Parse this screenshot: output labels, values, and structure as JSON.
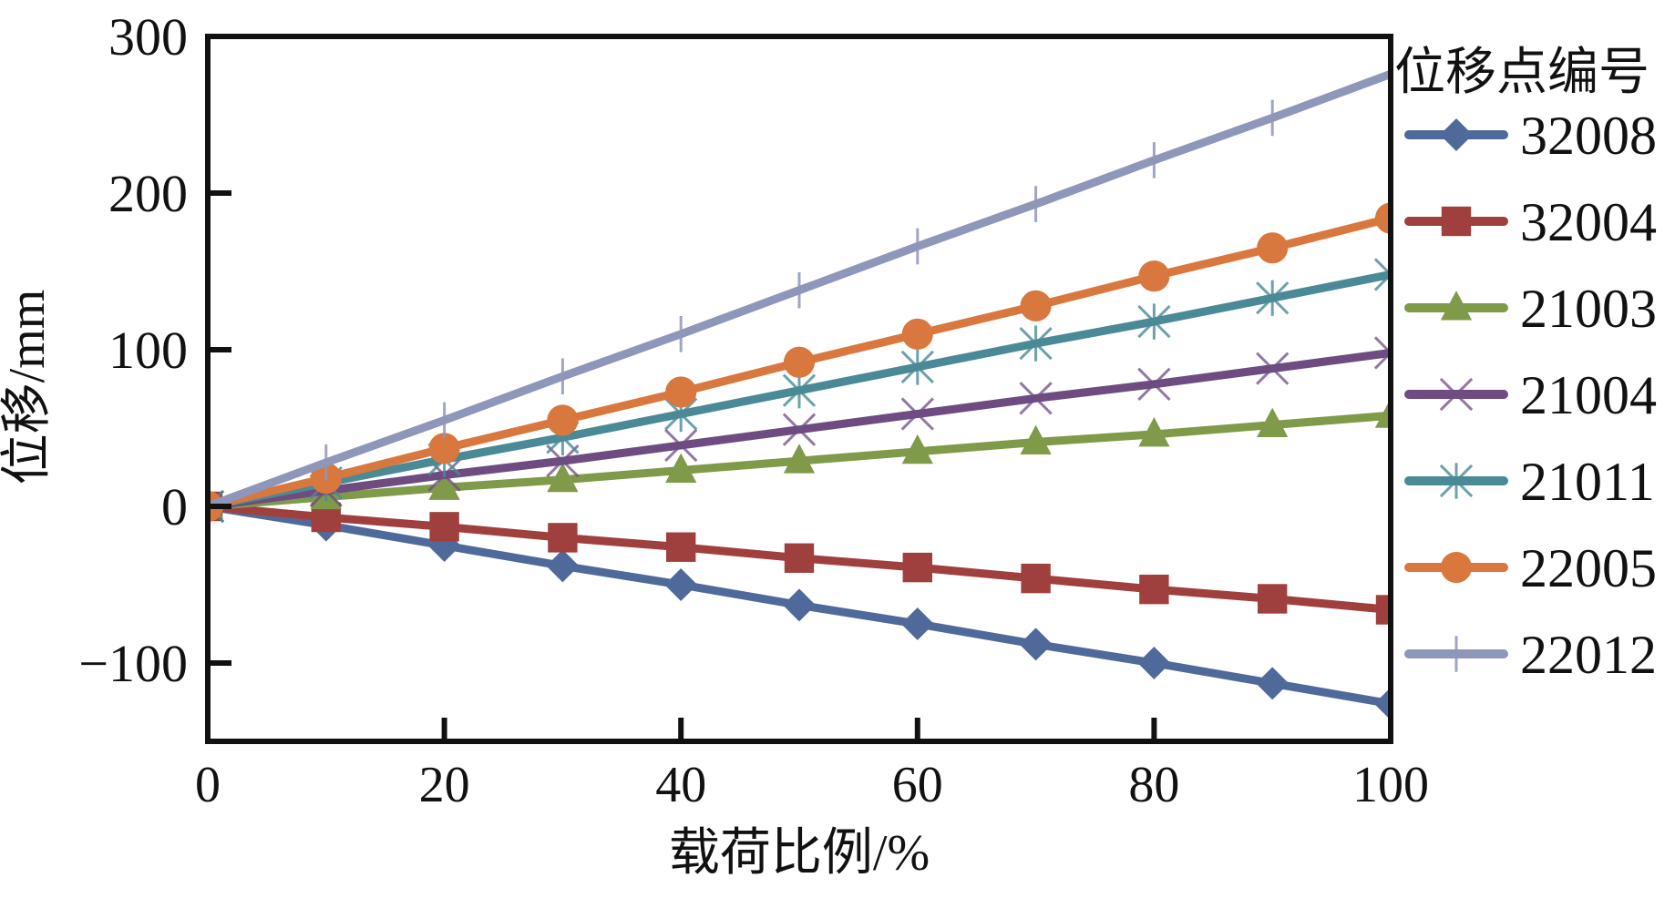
{
  "chart_data": {
    "type": "line",
    "title": "",
    "xlabel": "载荷比例/%",
    "ylabel": "位移/mm",
    "xlim": [
      0,
      100
    ],
    "ylim": [
      -150,
      300
    ],
    "x_ticks": [
      0,
      20,
      40,
      60,
      80,
      100
    ],
    "x_tick_labels": [
      "0",
      "20",
      "40",
      "60",
      "80",
      "100"
    ],
    "y_ticks": [
      -100,
      0,
      100,
      200,
      300
    ],
    "y_tick_labels": [
      "−100",
      "0",
      "100",
      "200",
      "300"
    ],
    "grid": false,
    "legend_title": "位移点编号",
    "legend_position": "right-outside",
    "x": [
      0,
      10,
      20,
      30,
      40,
      50,
      60,
      70,
      80,
      90,
      100
    ],
    "series": [
      {
        "name": "32008",
        "marker": "diamond",
        "color": "#4F6A9A",
        "values": [
          0,
          -12,
          -25,
          -38,
          -50,
          -63,
          -75,
          -88,
          -100,
          -113,
          -126
        ]
      },
      {
        "name": "32004",
        "marker": "square",
        "color": "#A0403E",
        "values": [
          0,
          -7,
          -13,
          -20,
          -26,
          -33,
          -39,
          -46,
          -53,
          -59,
          -66
        ]
      },
      {
        "name": "21003",
        "marker": "triangle",
        "color": "#7F9A48",
        "values": [
          0,
          6,
          12,
          17,
          23,
          29,
          35,
          41,
          46,
          52,
          58
        ]
      },
      {
        "name": "21004",
        "marker": "x",
        "color": "#6E4C82",
        "values": [
          0,
          10,
          20,
          29,
          39,
          49,
          59,
          69,
          78,
          88,
          98
        ]
      },
      {
        "name": "21011",
        "marker": "asterisk",
        "color": "#4A8A96",
        "values": [
          0,
          15,
          30,
          44,
          59,
          74,
          89,
          104,
          118,
          133,
          148
        ]
      },
      {
        "name": "22005",
        "marker": "circle",
        "color": "#D9783E",
        "values": [
          0,
          18,
          37,
          55,
          73,
          92,
          110,
          128,
          147,
          165,
          184
        ]
      },
      {
        "name": "22012",
        "marker": "plus",
        "color": "#8E97BA",
        "values": [
          0,
          28,
          55,
          83,
          110,
          138,
          166,
          193,
          221,
          248,
          276
        ]
      }
    ]
  }
}
